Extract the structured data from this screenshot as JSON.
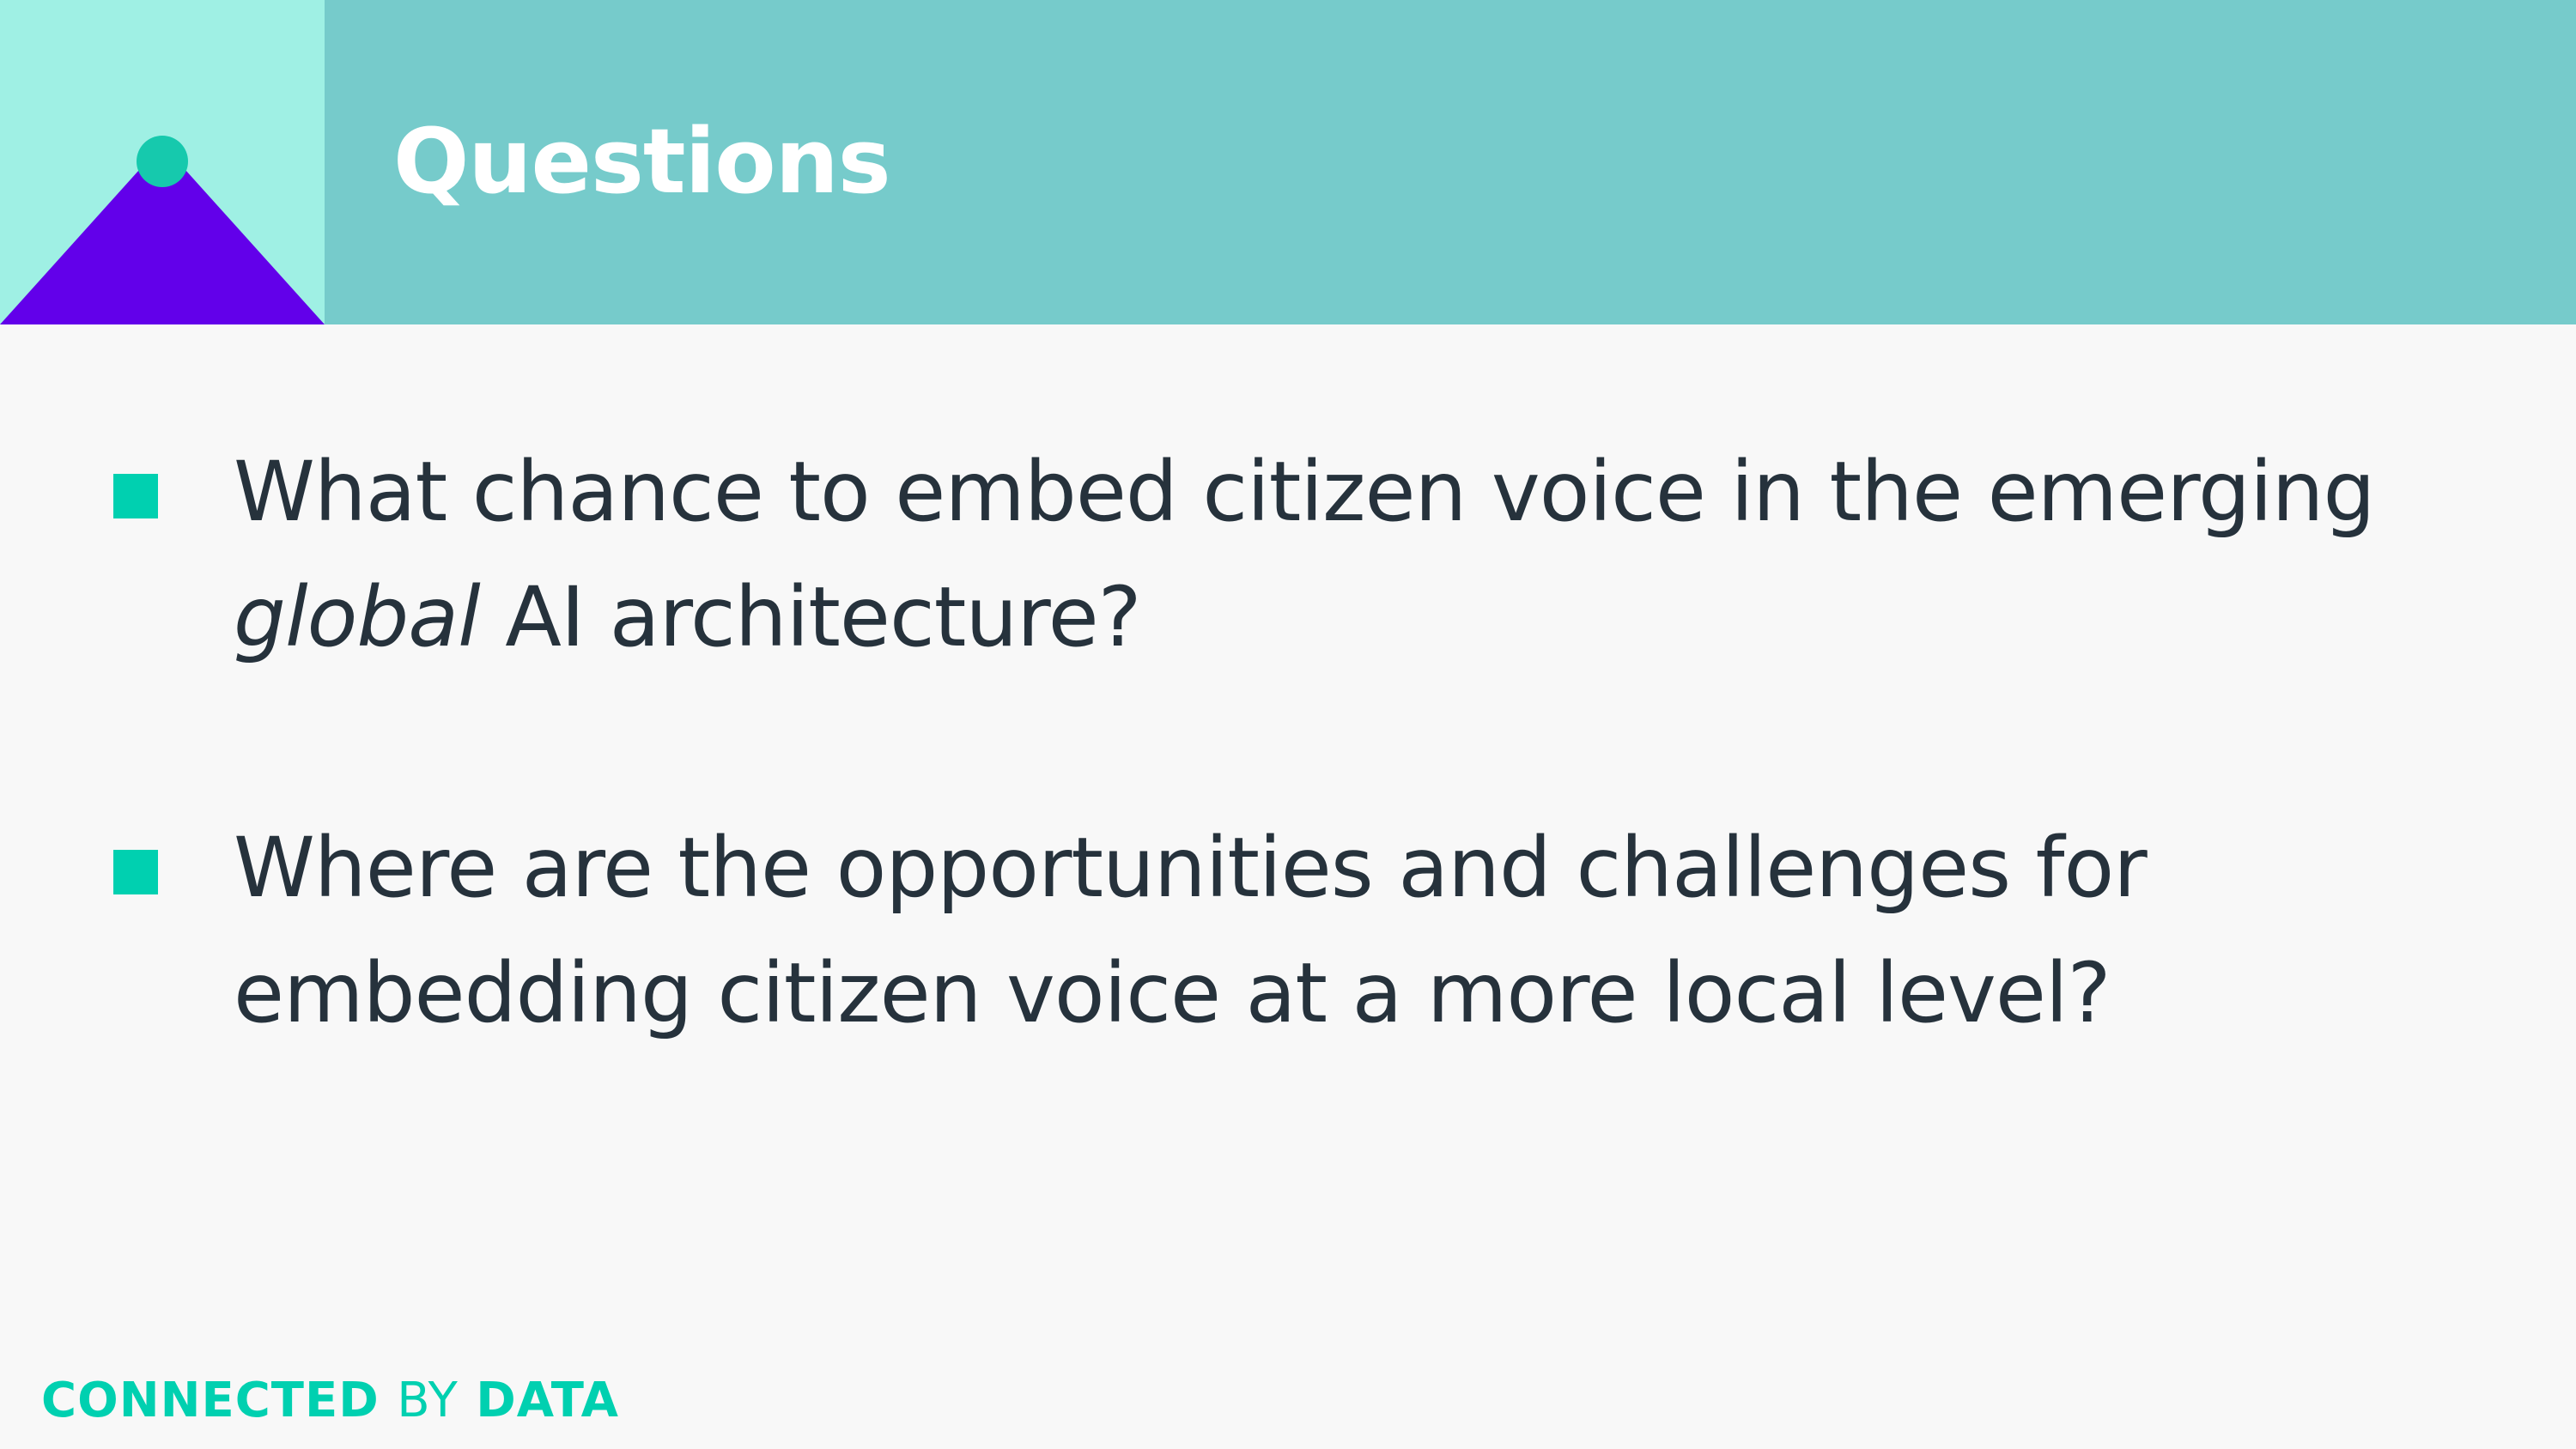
{
  "slide": {
    "title": "Questions",
    "bullets": [
      {
        "segments": [
          {
            "text": "What chance to embed citizen voice in the emerging ",
            "italic": false
          },
          {
            "text": "global",
            "italic": true
          },
          {
            "text": " AI architecture?",
            "italic": false
          }
        ]
      },
      {
        "segments": [
          {
            "text": "Where are the opportunities and challenges for embedding citizen voice at a more local level?",
            "italic": false
          }
        ]
      }
    ]
  },
  "footer": {
    "brand_part1": "CONNECTED",
    "brand_part2": "BY",
    "brand_part3": "DATA"
  },
  "colors": {
    "header_band": "#76cbcb",
    "logo_tile": "#9ff0e4",
    "logo_triangle": "#6200ea",
    "logo_dot": "#16c9ad",
    "bullet_marker": "#00d0b0",
    "body_text": "#26323c",
    "footer_brand": "#00d0b0"
  },
  "icons": {
    "corner_logo": "triangle-with-dot-icon",
    "bullet": "square-bullet-icon"
  }
}
